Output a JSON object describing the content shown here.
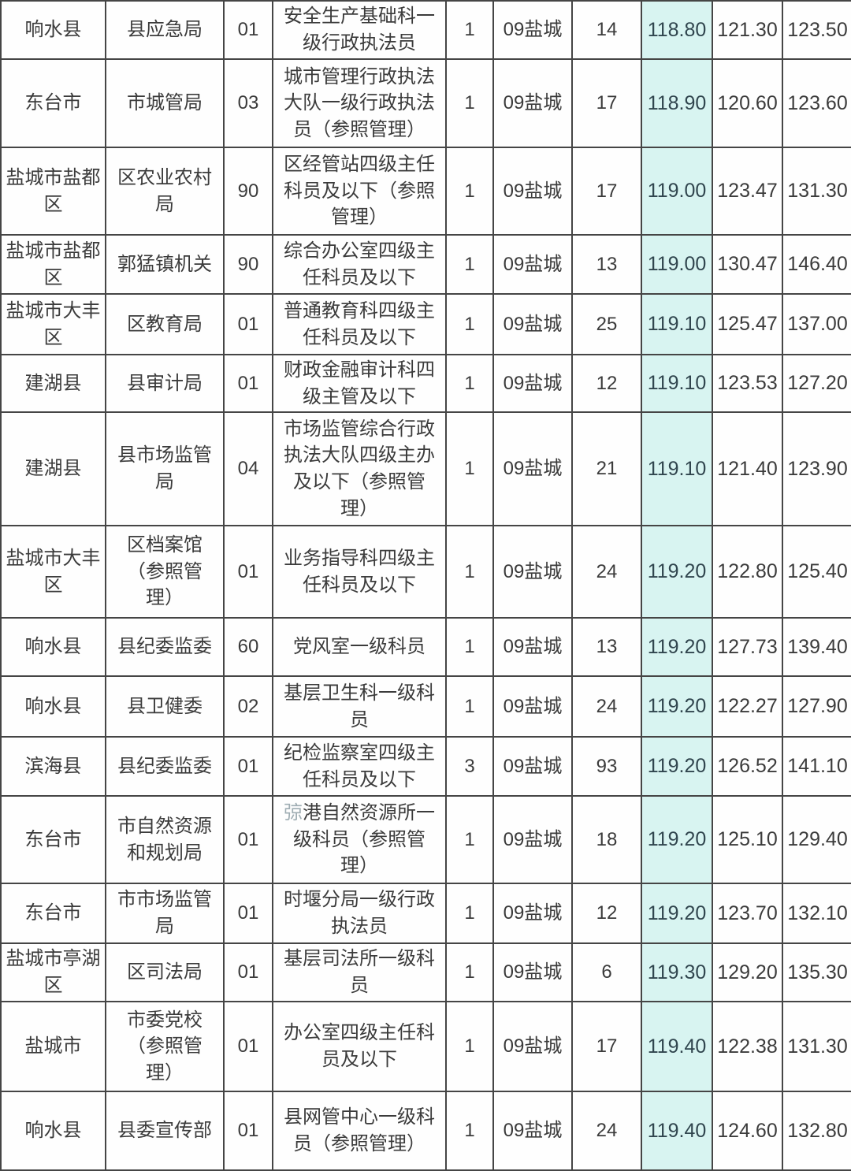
{
  "colors": {
    "highlight_bg": "#d8f4f1",
    "grid_border": "#454545",
    "text": "#3b3b3b"
  },
  "table": {
    "rows": [
      {
        "county": "响水县",
        "department": "县应急局",
        "code": "01",
        "position": "安全生产基础科一级行政执法员",
        "openings": "1",
        "city": "09盐城",
        "applicants": "14",
        "score1": "118.80",
        "score2": "121.30",
        "score3": "123.50"
      },
      {
        "county": "东台市",
        "department": "市城管局",
        "code": "03",
        "position": "城市管理行政执法大队一级行政执法员（参照管理）",
        "openings": "1",
        "city": "09盐城",
        "applicants": "17",
        "score1": "118.90",
        "score2": "120.60",
        "score3": "123.60"
      },
      {
        "county": "盐城市盐都区",
        "department": "区农业农村局",
        "code": "90",
        "position": "区经管站四级主任科员及以下（参照管理）",
        "openings": "1",
        "city": "09盐城",
        "applicants": "17",
        "score1": "119.00",
        "score2": "123.47",
        "score3": "131.30"
      },
      {
        "county": "盐城市盐都区",
        "department": "郭猛镇机关",
        "code": "90",
        "position": "综合办公室四级主任科员及以下",
        "openings": "1",
        "city": "09盐城",
        "applicants": "13",
        "score1": "119.00",
        "score2": "130.47",
        "score3": "146.40"
      },
      {
        "county": "盐城市大丰区",
        "department": "区教育局",
        "code": "01",
        "position": "普通教育科四级主任科员及以下",
        "openings": "1",
        "city": "09盐城",
        "applicants": "25",
        "score1": "119.10",
        "score2": "125.47",
        "score3": "137.00"
      },
      {
        "county": "建湖县",
        "department": "县审计局",
        "code": "01",
        "position": "财政金融审计科四级主管及以下",
        "openings": "1",
        "city": "09盐城",
        "applicants": "12",
        "score1": "119.10",
        "score2": "123.53",
        "score3": "127.20"
      },
      {
        "county": "建湖县",
        "department": "县市场监管局",
        "code": "04",
        "position": "市场监管综合行政执法大队四级主办及以下（参照管理）",
        "openings": "1",
        "city": "09盐城",
        "applicants": "21",
        "score1": "119.10",
        "score2": "121.40",
        "score3": "123.90"
      },
      {
        "county": "盐城市大丰区",
        "department": "区档案馆（参照管理）",
        "code": "01",
        "position": "业务指导科四级主任科员及以下",
        "openings": "1",
        "city": "09盐城",
        "applicants": "24",
        "score1": "119.20",
        "score2": "122.80",
        "score3": "125.40"
      },
      {
        "county": "响水县",
        "department": "县纪委监委",
        "code": "60",
        "position": "党风室一级科员",
        "openings": "1",
        "city": "09盐城",
        "applicants": "13",
        "score1": "119.20",
        "score2": "127.73",
        "score3": "139.40"
      },
      {
        "county": "响水县",
        "department": "县卫健委",
        "code": "02",
        "position": "基层卫生科一级科员",
        "openings": "1",
        "city": "09盐城",
        "applicants": "24",
        "score1": "119.20",
        "score2": "122.27",
        "score3": "127.90"
      },
      {
        "county": "滨海县",
        "department": "县纪委监委",
        "code": "01",
        "position": "纪检监察室四级主任科员及以下",
        "openings": "3",
        "city": "09盐城",
        "applicants": "93",
        "score1": "119.20",
        "score2": "126.52",
        "score3": "141.10"
      },
      {
        "county": "东台市",
        "department": "市自然资源和规划局",
        "code": "01",
        "position": "弶港自然资源所一级科员（参照管理）",
        "position_dim_chars": 1,
        "openings": "1",
        "city": "09盐城",
        "applicants": "18",
        "score1": "119.20",
        "score2": "125.10",
        "score3": "129.40"
      },
      {
        "county": "东台市",
        "department": "市市场监管局",
        "code": "01",
        "position": "时堰分局一级行政执法员",
        "openings": "1",
        "city": "09盐城",
        "applicants": "12",
        "score1": "119.20",
        "score2": "123.70",
        "score3": "132.10"
      },
      {
        "county": "盐城市亭湖区",
        "department": "区司法局",
        "code": "01",
        "position": "基层司法所一级科员",
        "openings": "1",
        "city": "09盐城",
        "applicants": "6",
        "score1": "119.30",
        "score2": "129.20",
        "score3": "135.30"
      },
      {
        "county": "盐城市",
        "department": "市委党校（参照管理）",
        "code": "01",
        "position": "办公室四级主任科员及以下",
        "openings": "1",
        "city": "09盐城",
        "applicants": "17",
        "score1": "119.40",
        "score2": "122.38",
        "score3": "131.30"
      },
      {
        "county": "响水县",
        "department": "县委宣传部",
        "code": "01",
        "position": "县网管中心一级科员（参照管理）",
        "openings": "1",
        "city": "09盐城",
        "applicants": "24",
        "score1": "119.40",
        "score2": "124.60",
        "score3": "132.80"
      }
    ]
  }
}
